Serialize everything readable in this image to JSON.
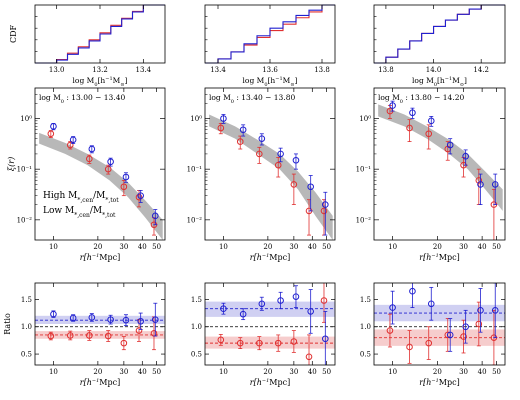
{
  "chart_data": {
    "type": "figure-grid",
    "legend": {
      "high_label": "High M",
      "high_sub1": "*,cen",
      "high_mid": "/M",
      "high_sub2": "*,tot",
      "low_label": "Low M",
      "low_sub1": "*,cen",
      "low_mid": "/M",
      "low_sub2": "*,tot",
      "high_color": "#e03030",
      "low_color": "#2020d0"
    },
    "colors": {
      "high": "#e03030",
      "low": "#2020d0",
      "band_gray": "#b8b8b8",
      "band_high": "#f4c4c4",
      "band_low": "#c8c8f0"
    },
    "cdf_panels": [
      {
        "type": "line",
        "ylabel": "CDF",
        "xlabel_main": "log M",
        "xlabel_sub": "0",
        "xlabel_unit": "[h",
        "xlabel_exp": "−1",
        "xlabel_end": "M",
        "xlabel_sun": "⊙",
        "xlabel_close": "]",
        "xlim": [
          12.9,
          13.5
        ],
        "ylim": [
          0,
          1
        ],
        "xticks": [
          13.0,
          13.2,
          13.4
        ],
        "xticklabels": [
          "13.0",
          "13.2",
          "13.4"
        ],
        "series": [
          {
            "name": "high",
            "x": [
              13.0,
              13.05,
              13.1,
              13.15,
              13.2,
              13.25,
              13.3,
              13.35,
              13.4
            ],
            "y": [
              0.06,
              0.17,
              0.28,
              0.4,
              0.52,
              0.65,
              0.77,
              0.89,
              1.0
            ]
          },
          {
            "name": "low",
            "x": [
              13.0,
              13.05,
              13.1,
              13.15,
              13.2,
              13.25,
              13.3,
              13.35,
              13.4
            ],
            "y": [
              0.05,
              0.15,
              0.26,
              0.38,
              0.5,
              0.63,
              0.76,
              0.88,
              1.0
            ]
          }
        ]
      },
      {
        "type": "line",
        "xlim": [
          13.35,
          13.85
        ],
        "ylim": [
          0,
          1
        ],
        "xticks": [
          13.4,
          13.6,
          13.8
        ],
        "xticklabels": [
          "13.4",
          "13.6",
          "13.8"
        ],
        "series": [
          {
            "name": "high",
            "x": [
              13.4,
              13.45,
              13.5,
              13.55,
              13.6,
              13.65,
              13.7,
              13.75,
              13.8
            ],
            "y": [
              0.07,
              0.19,
              0.31,
              0.44,
              0.56,
              0.67,
              0.78,
              0.88,
              1.0
            ]
          },
          {
            "name": "low",
            "x": [
              13.4,
              13.45,
              13.5,
              13.55,
              13.6,
              13.65,
              13.7,
              13.75,
              13.8
            ],
            "y": [
              0.07,
              0.19,
              0.33,
              0.47,
              0.6,
              0.71,
              0.82,
              0.91,
              1.0
            ]
          }
        ]
      },
      {
        "type": "line",
        "xlim": [
          13.75,
          14.3
        ],
        "ylim": [
          0,
          1
        ],
        "xticks": [
          13.8,
          14.0,
          14.2
        ],
        "xticklabels": [
          "13.8",
          "14.0",
          "14.2"
        ],
        "series": [
          {
            "name": "high",
            "x": [
              13.8,
              13.85,
              13.9,
              13.95,
              14.0,
              14.05,
              14.1,
              14.15,
              14.2
            ],
            "y": [
              0.1,
              0.24,
              0.38,
              0.51,
              0.63,
              0.74,
              0.84,
              0.93,
              1.0
            ]
          },
          {
            "name": "low",
            "x": [
              13.8,
              13.85,
              13.9,
              13.95,
              14.0,
              14.05,
              14.1,
              14.15,
              14.2
            ],
            "y": [
              0.1,
              0.24,
              0.38,
              0.51,
              0.63,
              0.74,
              0.84,
              0.93,
              1.0
            ]
          }
        ]
      }
    ],
    "xi_panels": [
      {
        "type": "line",
        "label": "log M0 : 13.00 − 13.40",
        "label_main": "log M",
        "label_sub": "0",
        "label_range": " : 13.00 − 13.40",
        "ylabel": "ξ(r)",
        "xlabel_main": "r[h",
        "xlabel_exp": "−1",
        "xlabel_end": "Mpc]",
        "xlim": [
          7.5,
          57
        ],
        "ylim": [
          0.004,
          4
        ],
        "xscale": "log",
        "yscale": "log",
        "xticks": [
          10,
          20,
          30,
          40,
          50
        ],
        "xticklabels": [
          "10",
          "20",
          "30",
          "40",
          "50"
        ],
        "yticks": [
          0.01,
          0.1,
          1
        ],
        "yticklabels": [
          "10⁻²",
          "10⁻¹",
          "10⁰"
        ],
        "band": {
          "x": [
            8,
            12,
            17,
            24,
            32,
            42,
            55
          ],
          "lo": [
            0.32,
            0.2,
            0.12,
            0.06,
            0.028,
            0.011,
            0.004
          ],
          "hi": [
            0.52,
            0.33,
            0.2,
            0.11,
            0.055,
            0.024,
            0.01
          ]
        },
        "series": [
          {
            "name": "high",
            "x": [
              9.6,
              13,
              17.5,
              23.5,
              30,
              38,
              48
            ],
            "y": [
              0.5,
              0.3,
              0.16,
              0.1,
              0.045,
              0.028,
              0.008
            ],
            "err": [
              0.08,
              0.05,
              0.03,
              0.02,
              0.015,
              0.01,
              0.003
            ]
          },
          {
            "name": "low",
            "x": [
              10.0,
              13.6,
              18.2,
              24.4,
              31,
              39,
              49
            ],
            "y": [
              0.7,
              0.38,
              0.25,
              0.14,
              0.07,
              0.03,
              0.012
            ],
            "err": [
              0.1,
              0.06,
              0.04,
              0.025,
              0.015,
              0.008,
              0.004
            ]
          }
        ]
      },
      {
        "type": "line",
        "label_main": "log M",
        "label_sub": "0",
        "label_range": " : 13.40 − 13.80",
        "xlim": [
          7.5,
          57
        ],
        "ylim": [
          0.004,
          4
        ],
        "xscale": "log",
        "yscale": "log",
        "xticks": [
          10,
          20,
          30,
          40,
          50
        ],
        "xticklabels": [
          "10",
          "20",
          "30",
          "40",
          "50"
        ],
        "band": {
          "x": [
            8,
            12,
            17,
            24,
            32,
            42,
            55
          ],
          "lo": [
            0.7,
            0.4,
            0.2,
            0.1,
            0.04,
            0.012,
            0.004
          ],
          "hi": [
            1.2,
            0.7,
            0.38,
            0.2,
            0.09,
            0.035,
            0.012
          ]
        },
        "series": [
          {
            "name": "high",
            "x": [
              9.6,
              13,
              17.5,
              23.5,
              30,
              38,
              48
            ],
            "y": [
              0.65,
              0.35,
              0.2,
              0.12,
              0.05,
              0.015,
              0.015
            ],
            "err": [
              0.15,
              0.1,
              0.07,
              0.05,
              0.03,
              0.01,
              0.01
            ]
          },
          {
            "name": "low",
            "x": [
              10.0,
              13.6,
              18.2,
              24.4,
              31,
              39,
              49
            ],
            "y": [
              1.0,
              0.6,
              0.4,
              0.2,
              0.15,
              0.045,
              0.02
            ],
            "err": [
              0.2,
              0.15,
              0.1,
              0.06,
              0.05,
              0.03,
              0.015
            ]
          }
        ]
      },
      {
        "type": "line",
        "label_main": "log M",
        "label_sub": "0",
        "label_range": " : 13.80 − 14.20",
        "xlim": [
          7.5,
          57
        ],
        "ylim": [
          0.004,
          4
        ],
        "xscale": "log",
        "yscale": "log",
        "xticks": [
          10,
          20,
          30,
          40,
          50
        ],
        "xticklabels": [
          "10",
          "20",
          "30",
          "40",
          "50"
        ],
        "band": {
          "x": [
            8,
            12,
            17,
            24,
            32,
            42,
            55
          ],
          "lo": [
            1.1,
            0.7,
            0.4,
            0.2,
            0.1,
            0.04,
            0.015
          ],
          "hi": [
            1.9,
            1.2,
            0.7,
            0.38,
            0.2,
            0.09,
            0.04
          ]
        },
        "series": [
          {
            "name": "high",
            "x": [
              9.6,
              13,
              17.5,
              23.5,
              30,
              38,
              48
            ],
            "y": [
              1.4,
              0.65,
              0.5,
              0.25,
              0.12,
              0.06,
              0.02
            ],
            "err": [
              0.4,
              0.3,
              0.25,
              0.1,
              0.05,
              0.04,
              0.02
            ]
          },
          {
            "name": "low",
            "x": [
              10.0,
              13.6,
              18.2,
              24.4,
              31,
              39,
              49
            ],
            "y": [
              1.8,
              1.3,
              0.9,
              0.3,
              0.18,
              0.05,
              0.05
            ],
            "err": [
              0.4,
              0.3,
              0.2,
              0.1,
              0.06,
              0.03,
              0.03
            ]
          }
        ]
      }
    ],
    "ratio_panels": [
      {
        "type": "line",
        "ylabel": "Ratio",
        "xlabel_main": "r[h",
        "xlabel_exp": "−1",
        "xlabel_end": "Mpc]",
        "xlim": [
          7.5,
          57
        ],
        "ylim": [
          0.3,
          1.8
        ],
        "xscale": "log",
        "xticks": [
          10,
          20,
          30,
          40,
          50
        ],
        "xticklabels": [
          "10",
          "20",
          "30",
          "40",
          "50"
        ],
        "yticks": [
          0.5,
          1.0,
          1.5
        ],
        "yticklabels": [
          "0.5",
          "1.0",
          "1.5"
        ],
        "high_mean": 0.85,
        "high_band": [
          0.78,
          0.92
        ],
        "low_mean": 1.12,
        "low_band": [
          1.05,
          1.2
        ],
        "series": [
          {
            "name": "high",
            "x": [
              9.6,
              13,
              17.5,
              23.5,
              30,
              38,
              48
            ],
            "y": [
              0.83,
              0.84,
              0.84,
              0.83,
              0.7,
              0.93,
              0.88
            ],
            "err": [
              0.07,
              0.08,
              0.09,
              0.1,
              0.12,
              0.2,
              0.3
            ]
          },
          {
            "name": "low",
            "x": [
              10.0,
              13.6,
              18.2,
              24.4,
              31,
              39,
              49
            ],
            "y": [
              1.23,
              1.16,
              1.17,
              1.13,
              1.12,
              1.1,
              1.13
            ],
            "err": [
              0.06,
              0.06,
              0.07,
              0.08,
              0.1,
              0.15,
              0.3
            ]
          }
        ]
      },
      {
        "type": "line",
        "xlim": [
          7.5,
          57
        ],
        "ylim": [
          0.3,
          1.8
        ],
        "xscale": "log",
        "xticks": [
          10,
          20,
          30,
          40,
          50
        ],
        "xticklabels": [
          "10",
          "20",
          "30",
          "40",
          "50"
        ],
        "yticks": [
          0.5,
          1.0,
          1.5
        ],
        "yticklabels": [
          "0.5",
          "1.0",
          "1.5"
        ],
        "high_mean": 0.7,
        "high_band": [
          0.6,
          0.82
        ],
        "low_mean": 1.33,
        "low_band": [
          1.18,
          1.46
        ],
        "series": [
          {
            "name": "high",
            "x": [
              9.6,
              13,
              17.5,
              23.5,
              30,
              38,
              48
            ],
            "y": [
              0.76,
              0.7,
              0.7,
              0.7,
              0.73,
              0.45,
              1.48
            ],
            "err": [
              0.1,
              0.1,
              0.12,
              0.15,
              0.2,
              0.4,
              0.4
            ]
          },
          {
            "name": "low",
            "x": [
              10.0,
              13.6,
              18.2,
              24.4,
              31,
              39,
              49
            ],
            "y": [
              1.33,
              1.23,
              1.42,
              1.48,
              1.55,
              1.28,
              0.78
            ],
            "err": [
              0.1,
              0.1,
              0.12,
              0.15,
              0.2,
              0.4,
              0.5
            ]
          }
        ]
      },
      {
        "type": "line",
        "xlim": [
          7.5,
          57
        ],
        "ylim": [
          0.3,
          1.8
        ],
        "xscale": "log",
        "xticks": [
          10,
          20,
          30,
          40,
          50
        ],
        "xticklabels": [
          "10",
          "20",
          "30",
          "40",
          "50"
        ],
        "yticks": [
          0.5,
          1.0,
          1.5
        ],
        "yticklabels": [
          "0.5",
          "1.0",
          "1.5"
        ],
        "high_mean": 0.8,
        "high_band": [
          0.65,
          0.95
        ],
        "low_mean": 1.25,
        "low_band": [
          1.1,
          1.4
        ],
        "series": [
          {
            "name": "high",
            "x": [
              9.6,
              13,
              17.5,
              23.5,
              30,
              38,
              48
            ],
            "y": [
              0.93,
              0.63,
              0.7,
              0.85,
              0.82,
              1.05,
              0.8
            ],
            "err": [
              0.3,
              0.3,
              0.3,
              0.3,
              0.3,
              0.4,
              0.5
            ]
          },
          {
            "name": "low",
            "x": [
              10.0,
              13.6,
              18.2,
              24.4,
              31,
              39,
              49
            ],
            "y": [
              1.35,
              1.65,
              1.42,
              0.85,
              1.0,
              1.3,
              1.3
            ],
            "err": [
              0.3,
              0.3,
              0.3,
              0.3,
              0.3,
              0.4,
              0.5
            ]
          }
        ]
      }
    ]
  }
}
